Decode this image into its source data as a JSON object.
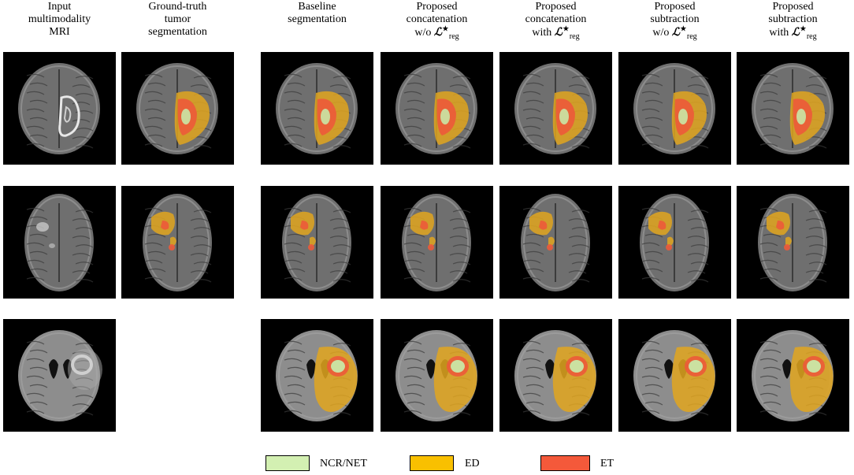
{
  "headers": [
    {
      "lines": [
        "Input",
        "multimodality",
        "MRI"
      ],
      "math": null
    },
    {
      "lines": [
        "Ground-truth",
        "tumor",
        "segmentation"
      ],
      "math": null
    },
    {
      "lines": [
        "Baseline",
        "segmentation"
      ],
      "math": null
    },
    {
      "lines": [
        "Proposed",
        "concatenation"
      ],
      "prefix": "w/o",
      "math": "ℒ"
    },
    {
      "lines": [
        "Proposed",
        "concatenation"
      ],
      "prefix": "with",
      "math": "ℒ"
    },
    {
      "lines": [
        "Proposed",
        "subtraction"
      ],
      "prefix": "w/o",
      "math": "ℒ"
    },
    {
      "lines": [
        "Proposed",
        "subtraction"
      ],
      "prefix": "with",
      "math": "ℒ"
    }
  ],
  "math_symbol": {
    "base": "ℒ",
    "sub": "reg",
    "sup": "★"
  },
  "legend": [
    {
      "label": "NCR/NET",
      "color": "#d3f0b2"
    },
    {
      "label": "ED",
      "color": "#f9c000"
    },
    {
      "label": "ET",
      "color": "#f4593a"
    }
  ],
  "colors": {
    "ncr": "#c9e8a6",
    "ed": "#e2a61e",
    "et": "#ec5a3a",
    "background": "#000000"
  }
}
